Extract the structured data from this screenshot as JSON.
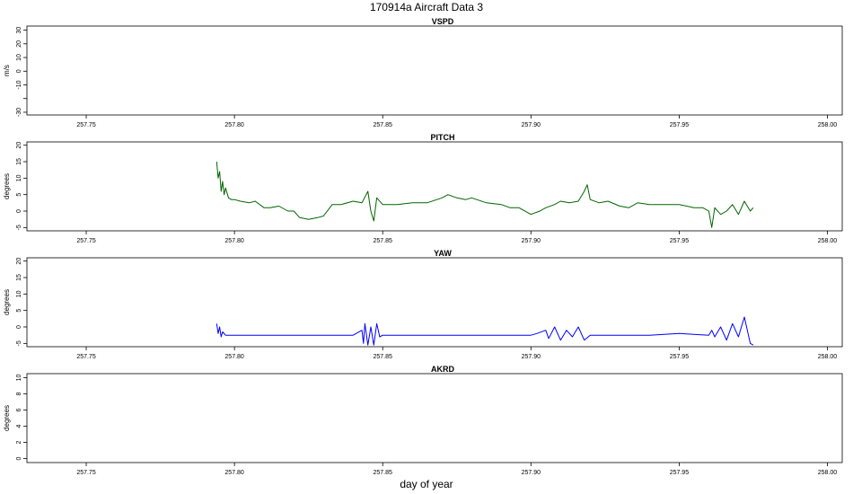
{
  "title": "170914a   Aircraft Data 3",
  "xlabel": "day of year",
  "chart_data": [
    {
      "type": "line",
      "title": "VSPD",
      "ylabel": "m/s",
      "xlim": [
        257.73,
        258.005
      ],
      "ylim": [
        -32,
        33
      ],
      "xticks": [
        257.75,
        257.8,
        257.85,
        257.9,
        257.95,
        258.0
      ],
      "xtick_labels": [
        "257.75",
        "257.80",
        "257.85",
        "257.90",
        "257.95",
        "258.00"
      ],
      "yticks": [
        -30,
        -20,
        -10,
        0,
        10,
        20,
        30
      ],
      "ytick_labels": [
        "-30",
        "",
        "-10",
        "0",
        "10",
        "20",
        "30"
      ],
      "color": "#000000",
      "series": []
    },
    {
      "type": "line",
      "title": "PITCH",
      "ylabel": "degrees",
      "xlim": [
        257.73,
        258.005
      ],
      "ylim": [
        -6,
        21
      ],
      "xticks": [
        257.75,
        257.8,
        257.85,
        257.9,
        257.95,
        258.0
      ],
      "xtick_labels": [
        "257.75",
        "257.80",
        "257.85",
        "257.90",
        "257.95",
        "258.00"
      ],
      "yticks": [
        -5,
        0,
        5,
        10,
        15,
        20
      ],
      "ytick_labels": [
        "-5",
        "0",
        "5",
        "10",
        "15",
        "20"
      ],
      "color": "#006400",
      "series": [
        {
          "x": [
            257.794,
            257.7945,
            257.795,
            257.7955,
            257.796,
            257.7965,
            257.797,
            257.798,
            257.799,
            257.8,
            257.802,
            257.805,
            257.807,
            257.81,
            257.812,
            257.815,
            257.818,
            257.82,
            257.822,
            257.825,
            257.828,
            257.83,
            257.833,
            257.836,
            257.84,
            257.843,
            257.845,
            257.846,
            257.847,
            257.848,
            257.85,
            257.855,
            257.86,
            257.865,
            257.87,
            257.872,
            257.875,
            257.878,
            257.88,
            257.885,
            257.89,
            257.893,
            257.896,
            257.9,
            257.903,
            257.905,
            257.908,
            257.91,
            257.913,
            257.916,
            257.918,
            257.919,
            257.92,
            257.923,
            257.926,
            257.93,
            257.933,
            257.936,
            257.94,
            257.945,
            257.95,
            257.955,
            257.958,
            257.96,
            257.961,
            257.962,
            257.964,
            257.966,
            257.968,
            257.97,
            257.972,
            257.974,
            257.975
          ],
          "y": [
            15,
            10,
            12,
            6,
            9,
            5,
            7,
            4,
            3.5,
            3.5,
            3,
            2.5,
            3,
            1,
            1,
            1.5,
            0,
            0,
            -2,
            -2.5,
            -2,
            -1.5,
            2,
            2,
            3,
            2.5,
            6,
            0,
            -3,
            4,
            2,
            2,
            2.5,
            2.5,
            4,
            5,
            4,
            3.5,
            4,
            2.5,
            2,
            1,
            1,
            -1,
            0,
            1,
            2,
            3,
            2.5,
            3,
            6,
            8,
            3.5,
            2.5,
            3,
            1.5,
            1,
            2.5,
            2,
            2,
            2,
            1,
            1,
            0,
            -5,
            1,
            -1,
            0,
            2,
            -1,
            3,
            0,
            1
          ]
        }
      ]
    },
    {
      "type": "line",
      "title": "YAW",
      "ylabel": "degrees",
      "xlim": [
        257.73,
        258.005
      ],
      "ylim": [
        -6,
        21
      ],
      "xticks": [
        257.75,
        257.8,
        257.85,
        257.9,
        257.95,
        258.0
      ],
      "xtick_labels": [
        "257.75",
        "257.80",
        "257.85",
        "257.90",
        "257.95",
        "258.00"
      ],
      "yticks": [
        -5,
        0,
        5,
        10,
        15,
        20
      ],
      "ytick_labels": [
        "-5",
        "0",
        "5",
        "10",
        "15",
        "20"
      ],
      "color": "#0000FF",
      "series": [
        {
          "x": [
            257.794,
            257.7945,
            257.795,
            257.7955,
            257.796,
            257.797,
            257.8,
            257.81,
            257.82,
            257.83,
            257.84,
            257.843,
            257.8435,
            257.844,
            257.845,
            257.846,
            257.847,
            257.848,
            257.849,
            257.85,
            257.852,
            257.86,
            257.87,
            257.88,
            257.89,
            257.9,
            257.902,
            257.905,
            257.906,
            257.908,
            257.91,
            257.912,
            257.914,
            257.916,
            257.918,
            257.92,
            257.93,
            257.94,
            257.95,
            257.96,
            257.961,
            257.962,
            257.964,
            257.966,
            257.968,
            257.97,
            257.972,
            257.974,
            257.975
          ],
          "y": [
            1,
            -2,
            0,
            -3,
            -1.5,
            -2.5,
            -2.5,
            -2.5,
            -2.5,
            -2.5,
            -2.5,
            -1,
            -5,
            1,
            -5.5,
            0,
            -5.5,
            1,
            -3,
            -2.5,
            -2.5,
            -2.5,
            -2.5,
            -2.5,
            -2.5,
            -2.5,
            -2,
            -1,
            -3.5,
            0,
            -4,
            -1,
            -3,
            0,
            -4,
            -2.5,
            -2.5,
            -2.5,
            -2,
            -2.5,
            -1,
            -3,
            0,
            -4,
            1,
            -3,
            3,
            -5,
            -5.5
          ]
        }
      ]
    },
    {
      "type": "line",
      "title": "AKRD",
      "ylabel": "degrees",
      "xlim": [
        257.73,
        258.005
      ],
      "ylim": [
        -0.5,
        10.5
      ],
      "xticks": [
        257.75,
        257.8,
        257.85,
        257.9,
        257.95,
        258.0
      ],
      "xtick_labels": [
        "257.75",
        "257.80",
        "257.85",
        "257.90",
        "257.95",
        "258.00"
      ],
      "yticks": [
        0,
        2,
        4,
        6,
        8,
        10
      ],
      "ytick_labels": [
        "0",
        "2",
        "4",
        "6",
        "8",
        "10"
      ],
      "color": "#000000",
      "series": []
    }
  ]
}
